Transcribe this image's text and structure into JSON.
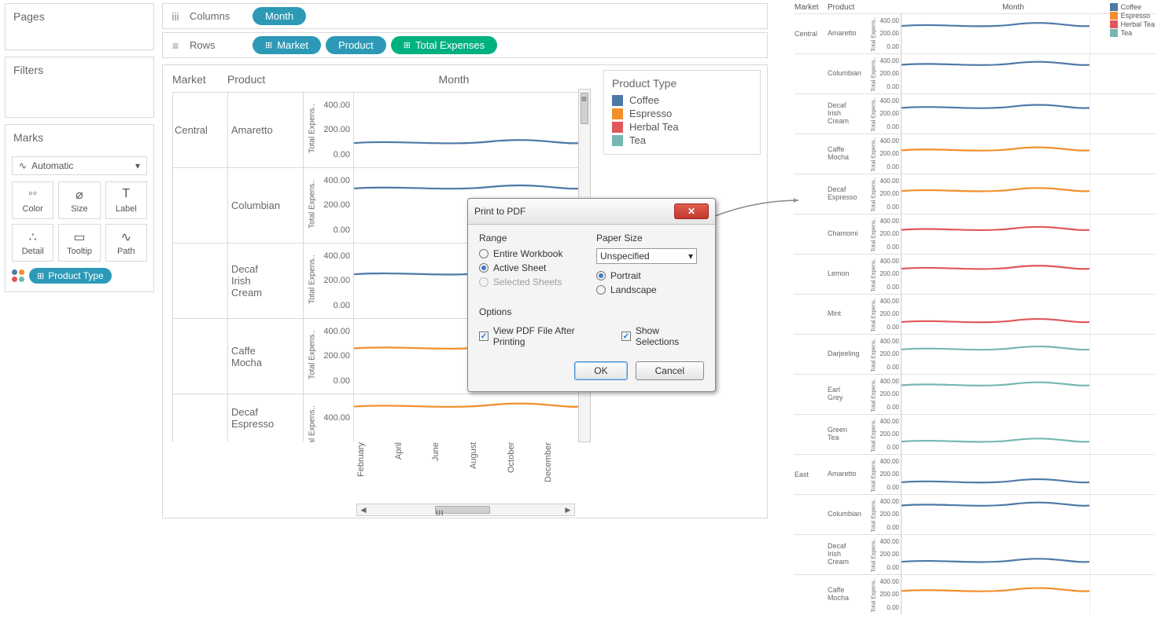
{
  "sidebar": {
    "pages_label": "Pages",
    "filters_label": "Filters",
    "marks_label": "Marks",
    "marks_type": "Automatic",
    "marks_cells": [
      {
        "label": "Color",
        "icon": "◦◦"
      },
      {
        "label": "Size",
        "icon": "⌀"
      },
      {
        "label": "Label",
        "icon": "T"
      },
      {
        "label": "Detail",
        "icon": "∴"
      },
      {
        "label": "Tooltip",
        "icon": "▭"
      },
      {
        "label": "Path",
        "icon": "∿"
      }
    ],
    "color_pill": "Product Type"
  },
  "shelves": {
    "columns_label": "Columns",
    "rows_label": "Rows",
    "columns_pills": [
      {
        "text": "Month",
        "cls": "pill-blue"
      }
    ],
    "rows_pills": [
      {
        "text": "Market",
        "cls": "pill-blue",
        "pre": "⊞"
      },
      {
        "text": "Product",
        "cls": "pill-blue"
      },
      {
        "text": "Total Expenses",
        "cls": "pill-green",
        "pre": "⊞"
      }
    ]
  },
  "viz": {
    "header_market": "Market",
    "header_product": "Product",
    "header_month": "Month",
    "yticks": [
      "400.00",
      "200.00",
      "0.00"
    ],
    "axis_label": "Total Expens..",
    "months": [
      "February",
      "April",
      "June",
      "August",
      "October",
      "December"
    ],
    "legend_title": "Product Type",
    "legend": [
      {
        "label": "Coffee",
        "color": "#4e79a7"
      },
      {
        "label": "Espresso",
        "color": "#f28e2b"
      },
      {
        "label": "Herbal Tea",
        "color": "#e15759"
      },
      {
        "label": "Tea",
        "color": "#76b7b2"
      }
    ],
    "rows": [
      {
        "market": "Central",
        "product": "Amaretto",
        "color": "#4e79a7",
        "y": 150
      },
      {
        "market": "",
        "product": "Columbian",
        "color": "#4e79a7",
        "y": 380
      },
      {
        "market": "",
        "product": "Decaf Irish Cream",
        "color": "#4e79a7",
        "y": 300
      },
      {
        "market": "",
        "product": "Caffe Mocha",
        "color": "#f28e2b",
        "y": 310
      },
      {
        "market": "",
        "product": "Decaf Espresso",
        "color": "#f28e2b",
        "y": 400
      }
    ]
  },
  "dialog": {
    "title": "Print to PDF",
    "range_label": "Range",
    "range_options": [
      {
        "label": "Entire Workbook",
        "sel": false,
        "dis": false
      },
      {
        "label": "Active Sheet",
        "sel": true,
        "dis": false
      },
      {
        "label": "Selected Sheets",
        "sel": false,
        "dis": true
      }
    ],
    "paper_label": "Paper Size",
    "paper_select": "Unspecified",
    "orient": [
      {
        "label": "Portrait",
        "sel": true
      },
      {
        "label": "Landscape",
        "sel": false
      }
    ],
    "options_label": "Options",
    "checks": [
      {
        "label": "View PDF File After Printing",
        "sel": true
      },
      {
        "label": "Show Selections",
        "sel": true
      }
    ],
    "ok": "OK",
    "cancel": "Cancel"
  },
  "export_rows": [
    {
      "market": "Central",
      "product": "Amaretto",
      "color": "#4e79a7",
      "y": 380
    },
    {
      "market": "",
      "product": "Columbian",
      "color": "#4e79a7",
      "y": 400
    },
    {
      "market": "",
      "product": "Decaf Irish Cream",
      "color": "#4e79a7",
      "y": 350
    },
    {
      "market": "",
      "product": "Caffe Mocha",
      "color": "#f28e2b",
      "y": 310
    },
    {
      "market": "",
      "product": "Decaf Espresso",
      "color": "#f28e2b",
      "y": 300
    },
    {
      "market": "",
      "product": "Chamomi",
      "color": "#e15759",
      "y": 320
    },
    {
      "market": "",
      "product": "Lemon",
      "color": "#e15759",
      "y": 340
    },
    {
      "market": "",
      "product": "Mint",
      "color": "#e15759",
      "y": 120
    },
    {
      "market": "",
      "product": "Darjeeling",
      "color": "#76b7b2",
      "y": 330
    },
    {
      "market": "",
      "product": "Earl Grey",
      "color": "#76b7b2",
      "y": 400
    },
    {
      "market": "",
      "product": "Green Tea",
      "color": "#76b7b2",
      "y": 130
    },
    {
      "market": "East",
      "product": "Amaretto",
      "color": "#4e79a7",
      "y": 120
    },
    {
      "market": "",
      "product": "Columbian",
      "color": "#4e79a7",
      "y": 400
    },
    {
      "market": "",
      "product": "Decaf Irish Cream",
      "color": "#4e79a7",
      "y": 130
    },
    {
      "market": "",
      "product": "Caffe Mocha",
      "color": "#f28e2b",
      "y": 310
    }
  ],
  "colors": {
    "dot1": "#4e79a7",
    "dot2": "#f28e2b",
    "dot3": "#e15759",
    "dot4": "#76b7b2"
  }
}
